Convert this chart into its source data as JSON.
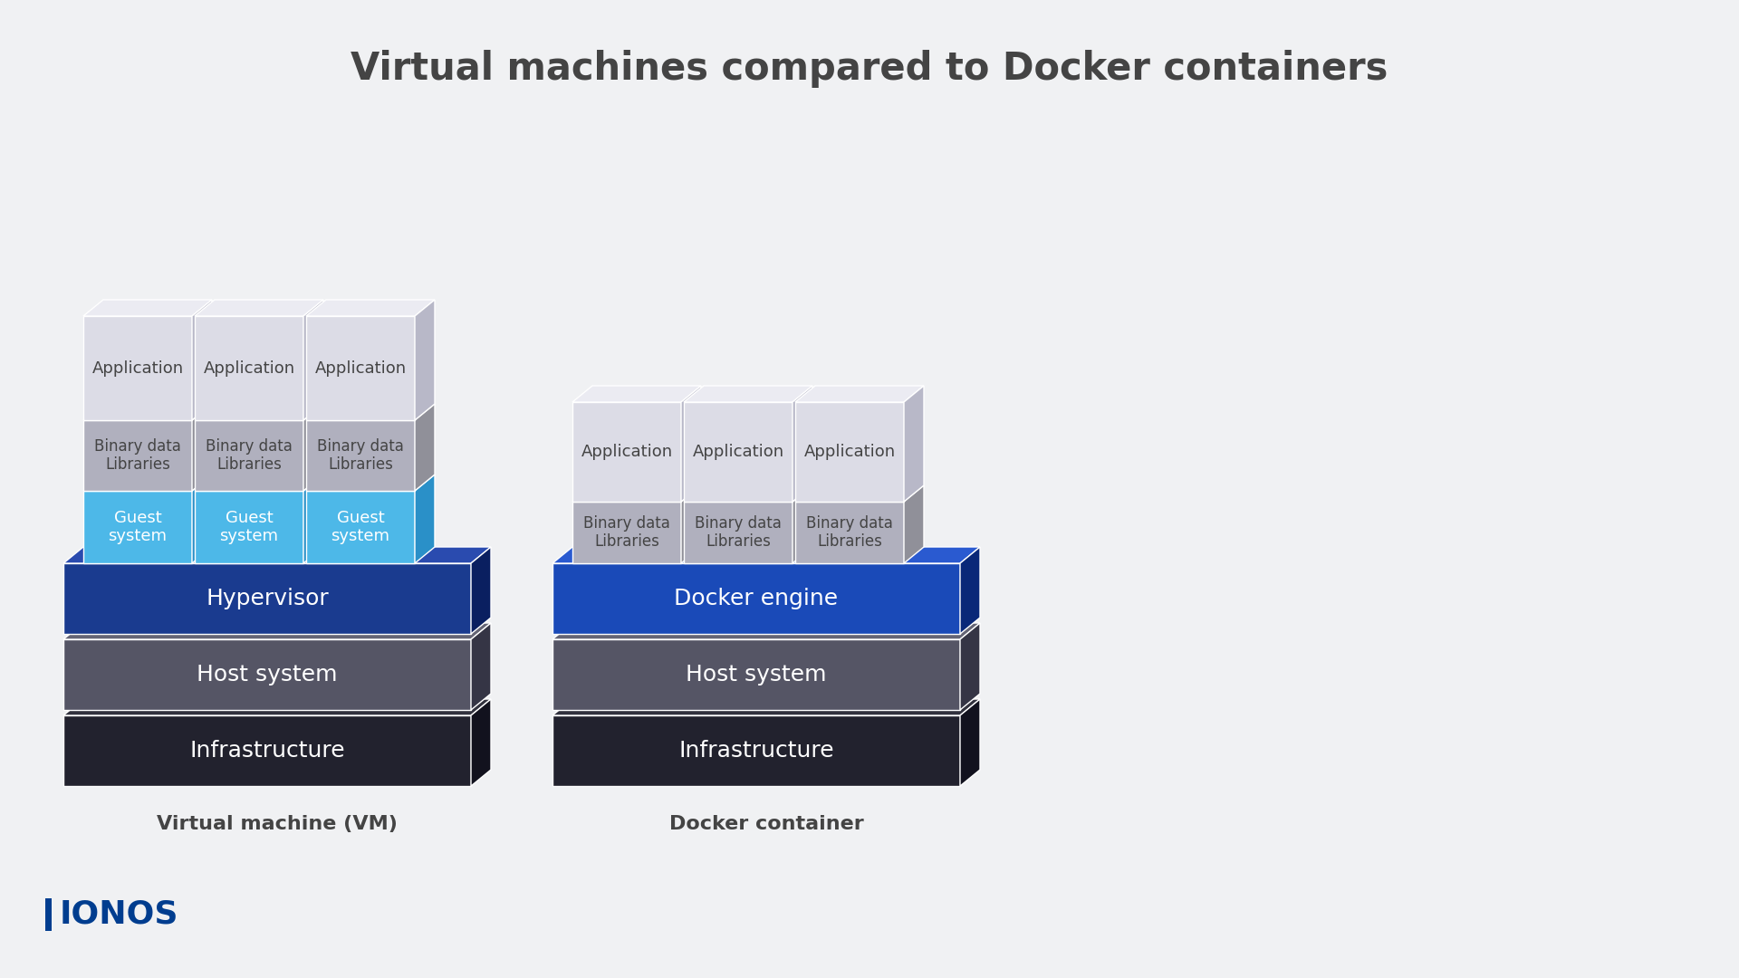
{
  "title": "Virtual machines compared to Docker containers",
  "title_color": "#444444",
  "title_fontsize": 30,
  "bg_color": "#f0f1f3",
  "vm_label": "Virtual machine (VM)",
  "docker_label": "Docker container",
  "colors": {
    "app_face": "#dcdce6",
    "app_top": "#ebebf2",
    "app_side": "#b8b8c8",
    "binlib_face": "#b0b0be",
    "binlib_top": "#cacad6",
    "binlib_side": "#909099",
    "guest_face": "#4db8e8",
    "guest_top": "#70cef0",
    "guest_side": "#2a90c8",
    "hypervisor_face": "#1a3b8f",
    "hypervisor_top": "#2a4baf",
    "hypervisor_side": "#0a1f60",
    "docker_face": "#1a4ab8",
    "docker_top": "#2a5ad0",
    "docker_side": "#0a2878",
    "host_face": "#555565",
    "host_top": "#656575",
    "host_side": "#353545",
    "infra_face": "#22222e",
    "infra_top": "#32323e",
    "infra_side": "#12121e",
    "ionos_blue": "#003d8f",
    "text_dark": "#444444",
    "text_white": "#ffffff",
    "text_gray": "#555555"
  }
}
